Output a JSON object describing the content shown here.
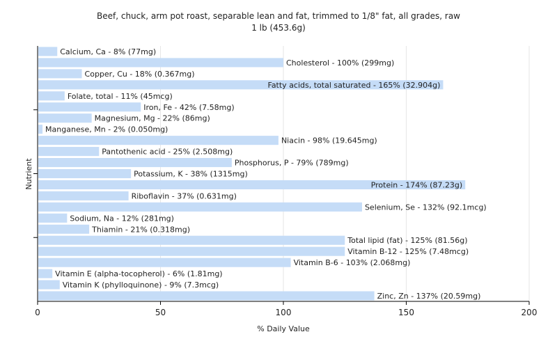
{
  "chart_data": {
    "type": "bar",
    "orientation": "horizontal",
    "title": "Beef, chuck, arm pot roast, separable lean and fat, trimmed to 1/8\" fat, all grades, raw",
    "subtitle": "1 lb (453.6g)",
    "xlabel": "% Daily Value",
    "ylabel": "Nutrient",
    "xlim": [
      0,
      200
    ],
    "xticks": [
      0,
      50,
      100,
      150,
      200
    ],
    "grid": "vertical",
    "bar_color": "#c5dcf7",
    "categories": [
      "Calcium, Ca",
      "Cholesterol",
      "Copper, Cu",
      "Fatty acids, total saturated",
      "Folate, total",
      "Iron, Fe",
      "Magnesium, Mg",
      "Manganese, Mn",
      "Niacin",
      "Pantothenic acid",
      "Phosphorus, P",
      "Potassium, K",
      "Protein",
      "Riboflavin",
      "Selenium, Se",
      "Sodium, Na",
      "Thiamin",
      "Total lipid (fat)",
      "Vitamin B-12",
      "Vitamin B-6",
      "Vitamin E (alpha-tocopherol)",
      "Vitamin K (phylloquinone)",
      "Zinc, Zn"
    ],
    "values": [
      8,
      100,
      18,
      165,
      11,
      42,
      22,
      2,
      98,
      25,
      79,
      38,
      174,
      37,
      132,
      12,
      21,
      125,
      125,
      103,
      6,
      9,
      137
    ],
    "labels": [
      "Calcium, Ca - 8% (77mg)",
      "Cholesterol - 100% (299mg)",
      "Copper, Cu - 18% (0.367mg)",
      "Fatty acids, total saturated - 165% (32.904g)",
      "Folate, total - 11% (45mcg)",
      "Iron, Fe - 42% (7.58mg)",
      "Magnesium, Mg - 22% (86mg)",
      "Manganese, Mn - 2% (0.050mg)",
      "Niacin - 98% (19.645mg)",
      "Pantothenic acid - 25% (2.508mg)",
      "Phosphorus, P - 79% (789mg)",
      "Potassium, K - 38% (1315mg)",
      "Protein - 174% (87.23g)",
      "Riboflavin - 37% (0.631mg)",
      "Selenium, Se - 132% (92.1mcg)",
      "Sodium, Na - 12% (281mg)",
      "Thiamin - 21% (0.318mg)",
      "Total lipid (fat) - 125% (81.56g)",
      "Vitamin B-12 - 125% (7.48mcg)",
      "Vitamin B-6 - 103% (2.068mg)",
      "Vitamin E (alpha-tocopherol) - 6% (1.81mg)",
      "Vitamin K (phylloquinone) - 9% (7.3mcg)",
      "Zinc, Zn - 137% (20.59mg)"
    ]
  }
}
